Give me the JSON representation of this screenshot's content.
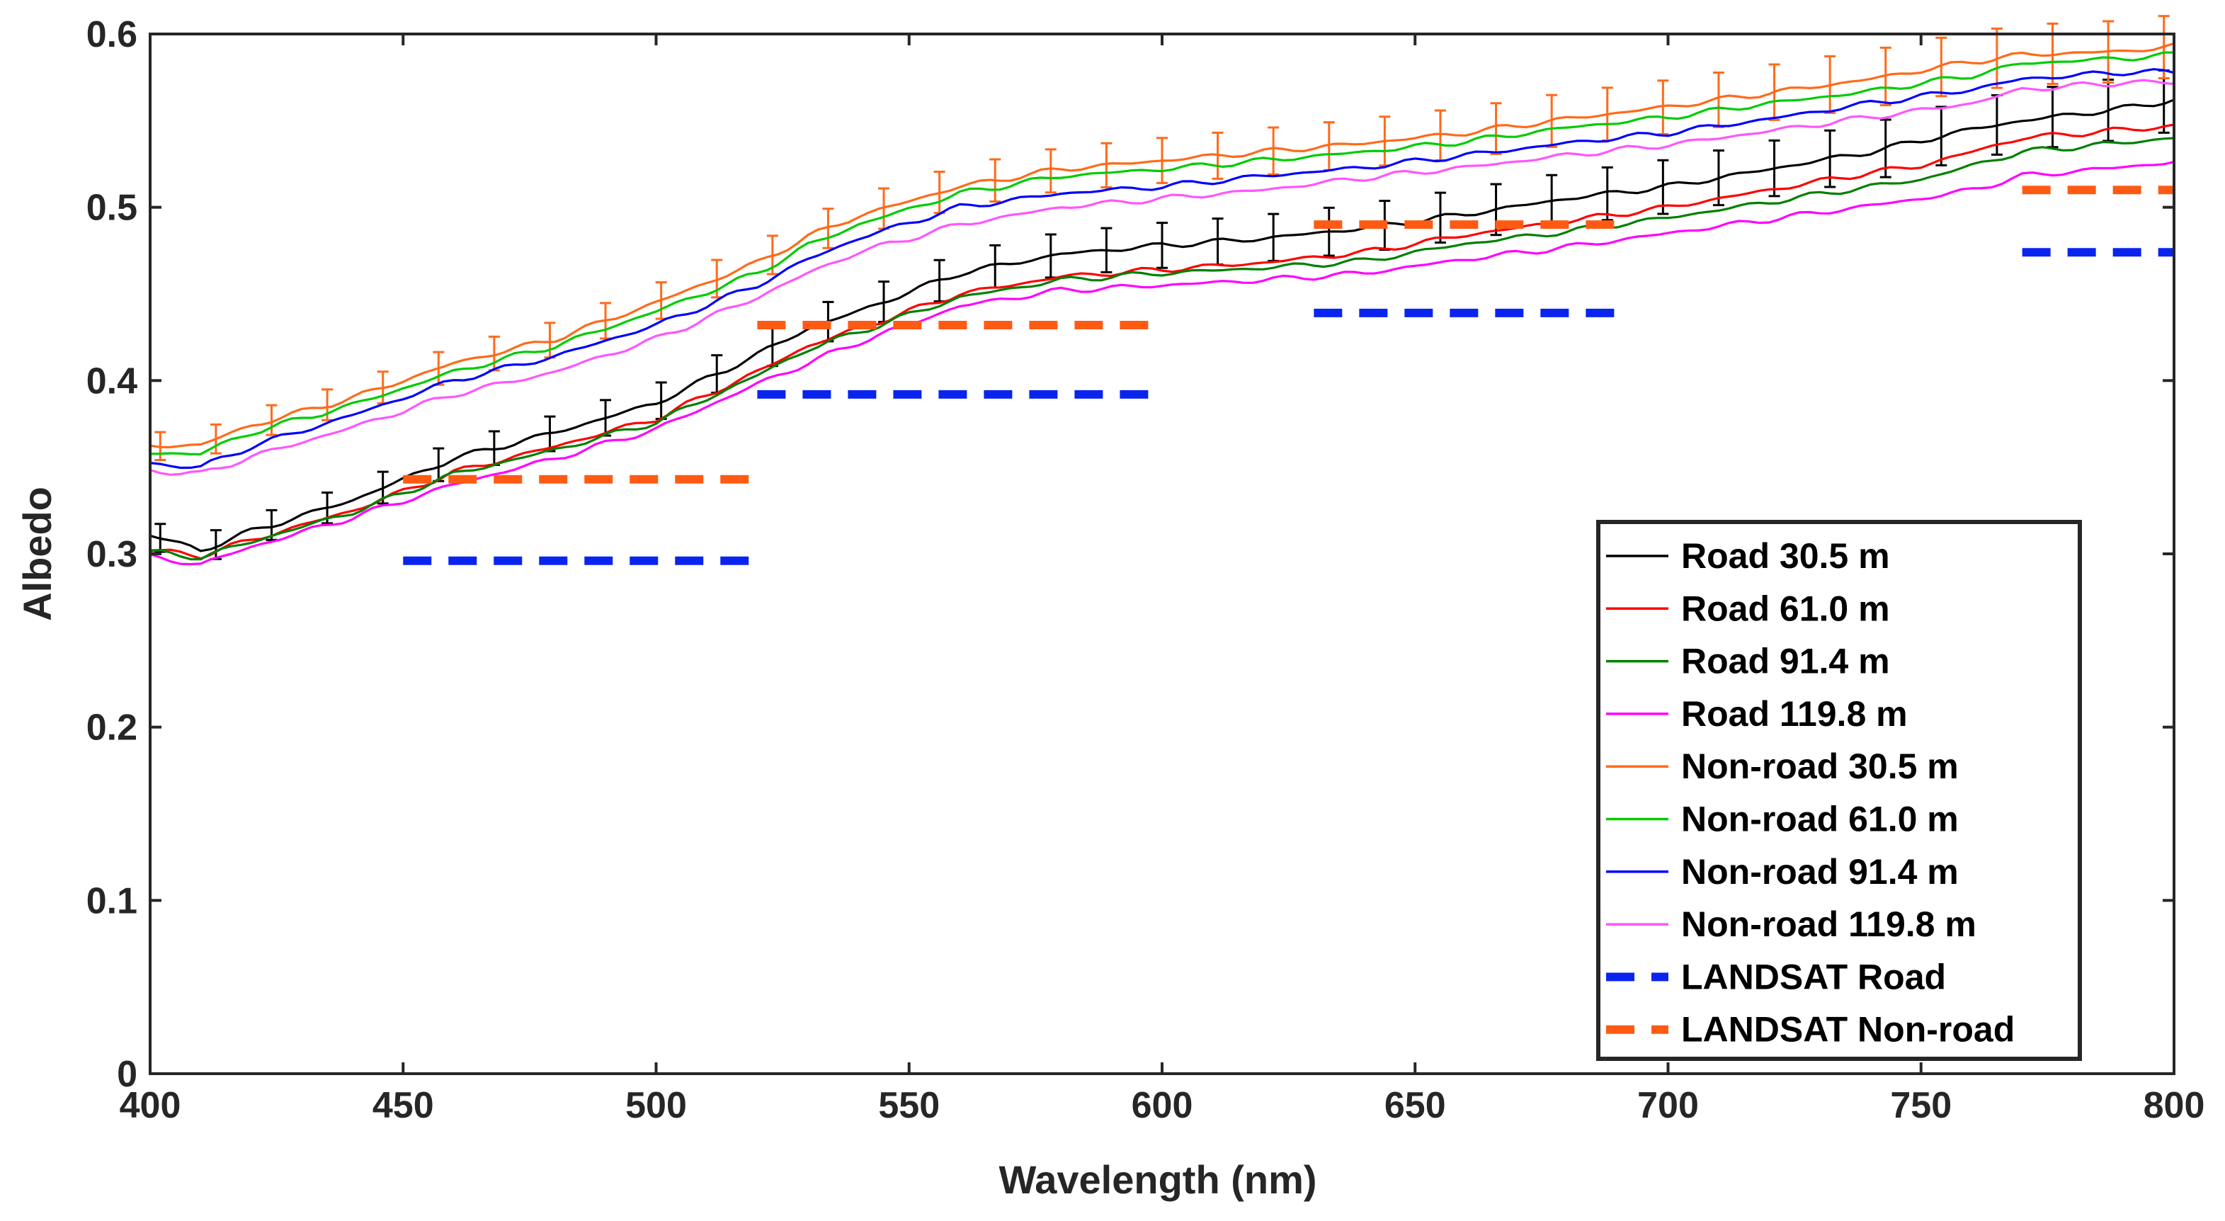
{
  "chart_data": {
    "type": "line",
    "title": "",
    "xlabel": "Wavelength (nm)",
    "ylabel": "Albedo",
    "xlim": [
      400,
      800
    ],
    "ylim": [
      0,
      0.6
    ],
    "xticks": [
      400,
      450,
      500,
      550,
      600,
      650,
      700,
      750,
      800
    ],
    "xtick_labels": [
      "400",
      "450",
      "500",
      "550",
      "600",
      "650",
      "700",
      "750",
      "800"
    ],
    "yticks": [
      0,
      0.1,
      0.2,
      0.3,
      0.4,
      0.5,
      0.6
    ],
    "ytick_labels": [
      "0",
      "0.1",
      "0.2",
      "0.3",
      "0.4",
      "0.5",
      "0.6"
    ],
    "legend_position": "bottom-right",
    "series": [
      {
        "name": "Road 30.5 m",
        "color": "#000000",
        "error_bars": true,
        "x": [
          400,
          410,
          420,
          440,
          460,
          480,
          500,
          520,
          530,
          540,
          560,
          580,
          600,
          620,
          640,
          660,
          680,
          700,
          720,
          740,
          760,
          770,
          790,
          800
        ],
        "y": [
          0.311,
          0.302,
          0.313,
          0.331,
          0.355,
          0.37,
          0.387,
          0.415,
          0.43,
          0.44,
          0.462,
          0.473,
          0.478,
          0.482,
          0.488,
          0.496,
          0.505,
          0.512,
          0.522,
          0.532,
          0.545,
          0.55,
          0.557,
          0.562
        ]
      },
      {
        "name": "Road 61.0 m",
        "color": "#ff0000",
        "error_bars": false,
        "x": [
          400,
          410,
          420,
          440,
          460,
          480,
          500,
          520,
          530,
          540,
          560,
          580,
          600,
          620,
          640,
          660,
          680,
          700,
          720,
          740,
          750,
          760,
          770,
          800
        ],
        "y": [
          0.302,
          0.299,
          0.308,
          0.325,
          0.347,
          0.362,
          0.378,
          0.405,
          0.42,
          0.43,
          0.45,
          0.46,
          0.464,
          0.468,
          0.474,
          0.484,
          0.492,
          0.5,
          0.51,
          0.52,
          0.524,
          0.532,
          0.54,
          0.547
        ]
      },
      {
        "name": "Road 91.4 m",
        "color": "#008000",
        "error_bars": false,
        "x": [
          400,
          410,
          420,
          440,
          460,
          480,
          500,
          520,
          530,
          540,
          560,
          580,
          600,
          620,
          640,
          660,
          680,
          700,
          720,
          740,
          750,
          760,
          770,
          800
        ],
        "y": [
          0.301,
          0.298,
          0.307,
          0.324,
          0.346,
          0.36,
          0.376,
          0.403,
          0.418,
          0.428,
          0.448,
          0.458,
          0.462,
          0.465,
          0.469,
          0.479,
          0.486,
          0.494,
          0.503,
          0.512,
          0.516,
          0.524,
          0.532,
          0.54
        ]
      },
      {
        "name": "Road 119.8 m",
        "color": "#ff00ff",
        "error_bars": false,
        "x": [
          400,
          410,
          420,
          440,
          460,
          480,
          500,
          520,
          530,
          540,
          560,
          580,
          600,
          620,
          640,
          660,
          680,
          700,
          720,
          740,
          750,
          760,
          770,
          800
        ],
        "y": [
          0.298,
          0.294,
          0.304,
          0.321,
          0.34,
          0.355,
          0.372,
          0.398,
          0.41,
          0.422,
          0.443,
          0.452,
          0.455,
          0.458,
          0.462,
          0.47,
          0.477,
          0.485,
          0.493,
          0.501,
          0.505,
          0.51,
          0.518,
          0.526
        ]
      },
      {
        "name": "Non-road 30.5 m",
        "color": "#ff6a1a",
        "error_bars": true,
        "x": [
          400,
          410,
          420,
          440,
          460,
          480,
          500,
          520,
          530,
          540,
          560,
          580,
          600,
          620,
          640,
          660,
          680,
          700,
          720,
          740,
          760,
          770,
          790,
          800
        ],
        "y": [
          0.362,
          0.363,
          0.374,
          0.39,
          0.41,
          0.424,
          0.445,
          0.468,
          0.483,
          0.495,
          0.512,
          0.522,
          0.527,
          0.532,
          0.537,
          0.543,
          0.551,
          0.558,
          0.566,
          0.574,
          0.584,
          0.588,
          0.59,
          0.593
        ]
      },
      {
        "name": "Non-road 61.0 m",
        "color": "#00cc00",
        "error_bars": false,
        "x": [
          400,
          410,
          420,
          440,
          460,
          480,
          500,
          520,
          530,
          540,
          560,
          580,
          600,
          620,
          640,
          660,
          680,
          700,
          720,
          740,
          760,
          770,
          790,
          800
        ],
        "y": [
          0.358,
          0.358,
          0.37,
          0.386,
          0.405,
          0.42,
          0.44,
          0.462,
          0.478,
          0.49,
          0.508,
          0.518,
          0.522,
          0.527,
          0.532,
          0.538,
          0.546,
          0.552,
          0.56,
          0.567,
          0.576,
          0.583,
          0.586,
          0.588
        ]
      },
      {
        "name": "Non-road 91.4 m",
        "color": "#0000ff",
        "error_bars": false,
        "x": [
          400,
          410,
          420,
          440,
          460,
          480,
          500,
          520,
          530,
          540,
          560,
          580,
          600,
          620,
          640,
          660,
          680,
          700,
          720,
          740,
          760,
          770,
          790,
          800
        ],
        "y": [
          0.352,
          0.35,
          0.362,
          0.38,
          0.4,
          0.414,
          0.432,
          0.455,
          0.47,
          0.482,
          0.5,
          0.508,
          0.512,
          0.518,
          0.523,
          0.53,
          0.537,
          0.543,
          0.551,
          0.56,
          0.568,
          0.574,
          0.578,
          0.578
        ]
      },
      {
        "name": "Non-road 119.8 m",
        "color": "#ff55ff",
        "error_bars": false,
        "x": [
          400,
          410,
          420,
          440,
          460,
          480,
          500,
          520,
          530,
          540,
          560,
          580,
          600,
          620,
          640,
          660,
          680,
          700,
          720,
          740,
          760,
          770,
          790,
          800
        ],
        "y": [
          0.348,
          0.346,
          0.356,
          0.373,
          0.392,
          0.405,
          0.424,
          0.448,
          0.462,
          0.474,
          0.49,
          0.5,
          0.505,
          0.51,
          0.517,
          0.523,
          0.53,
          0.536,
          0.544,
          0.552,
          0.56,
          0.568,
          0.572,
          0.572
        ]
      }
    ],
    "landsat": [
      {
        "name": "LANDSAT Road",
        "color": "#0a24f0",
        "bands": [
          {
            "x": [
              450,
              520
            ],
            "y": 0.296
          },
          {
            "x": [
              520,
              600
            ],
            "y": 0.392
          },
          {
            "x": [
              630,
              690
            ],
            "y": 0.439
          },
          {
            "x": [
              770,
              800
            ],
            "y": 0.474
          }
        ]
      },
      {
        "name": "LANDSAT Non-road",
        "color": "#ff5a14",
        "bands": [
          {
            "x": [
              450,
              520
            ],
            "y": 0.343
          },
          {
            "x": [
              520,
              600
            ],
            "y": 0.432
          },
          {
            "x": [
              630,
              690
            ],
            "y": 0.49
          },
          {
            "x": [
              770,
              800
            ],
            "y": 0.51
          }
        ]
      }
    ]
  }
}
